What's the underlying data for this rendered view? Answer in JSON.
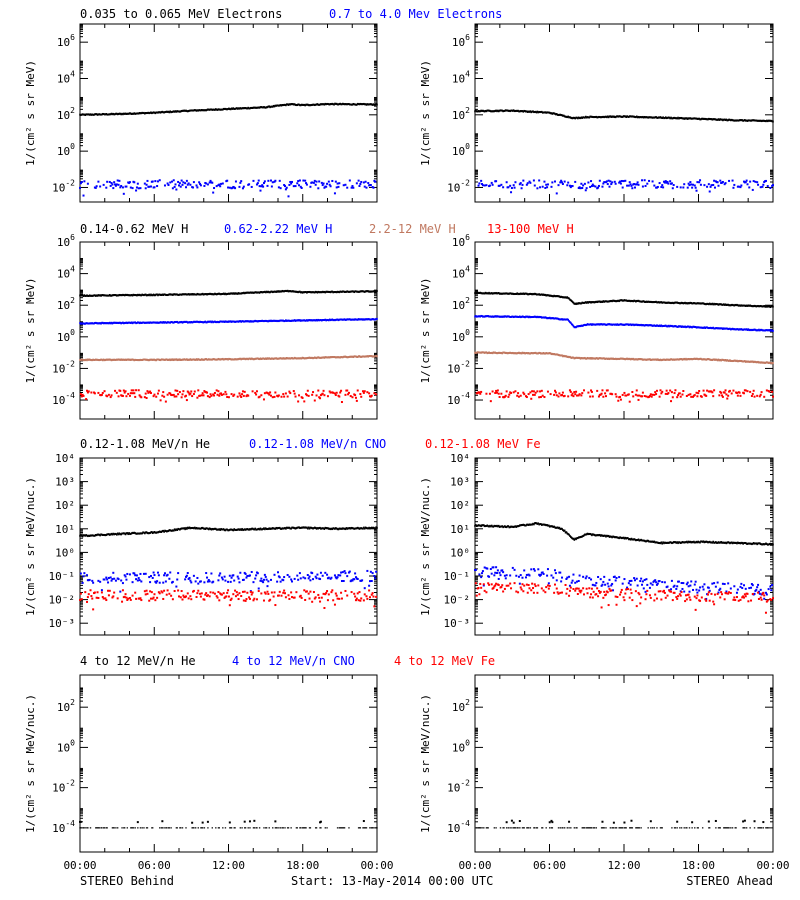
{
  "colors": {
    "black": "#000000",
    "blue": "#0000ff",
    "tan": "#c07860",
    "red": "#ff0000"
  },
  "chart_data": [
    {
      "type": "scatter",
      "row": 0,
      "col": 0,
      "yscale": "log",
      "ylabel": "1/(cm² s sr MeV)",
      "yticks": [
        {
          "exp": -2
        },
        {
          "exp": 0
        },
        {
          "exp": 2
        },
        {
          "exp": 4
        },
        {
          "exp": 6
        }
      ],
      "ylim": [
        -2.8,
        7.0
      ],
      "series": [
        {
          "name": "0.035 to 0.065 MeV Electrons",
          "color": "#000000",
          "pattern": "line",
          "x": [
            0,
            3,
            6,
            9,
            12,
            15,
            17,
            18,
            20,
            24
          ],
          "y": [
            100,
            110,
            130,
            170,
            210,
            260,
            380,
            340,
            390,
            370
          ]
        },
        {
          "name": "0.7 to 4.0 Mev Electrons",
          "color": "#0000ff",
          "pattern": "noisy",
          "x": [
            0,
            24
          ],
          "y": [
            0.015,
            0.015
          ]
        }
      ]
    },
    {
      "type": "scatter",
      "row": 0,
      "col": 1,
      "yscale": "log",
      "ylabel": "1/(cm² s sr MeV)",
      "yticks": [
        {
          "exp": -2
        },
        {
          "exp": 0
        },
        {
          "exp": 2
        },
        {
          "exp": 4
        },
        {
          "exp": 6
        }
      ],
      "ylim": [
        -2.8,
        7.0
      ],
      "series": [
        {
          "color": "#000000",
          "pattern": "line",
          "x": [
            0,
            3,
            6,
            8,
            9,
            12,
            15,
            18,
            21,
            24
          ],
          "y": [
            160,
            170,
            130,
            65,
            75,
            80,
            70,
            60,
            50,
            45
          ]
        },
        {
          "color": "#0000ff",
          "pattern": "noisy",
          "x": [
            0,
            24
          ],
          "y": [
            0.015,
            0.015
          ]
        }
      ]
    },
    {
      "type": "scatter",
      "row": 1,
      "col": 0,
      "yscale": "log",
      "ylabel": "1/(cm² s sr MeV)",
      "yticks": [
        {
          "exp": -4
        },
        {
          "exp": -2
        },
        {
          "exp": 0
        },
        {
          "exp": 2
        },
        {
          "exp": 4
        },
        {
          "exp": 6
        }
      ],
      "ylim": [
        -5.2,
        6.0
      ],
      "series": [
        {
          "name": "0.14-0.62 MeV H",
          "color": "#000000",
          "pattern": "line",
          "x": [
            0,
            6,
            12,
            17,
            18,
            21,
            24
          ],
          "y": [
            400,
            450,
            520,
            800,
            650,
            700,
            750
          ]
        },
        {
          "name": "0.62-2.22 MeV H",
          "color": "#0000ff",
          "pattern": "line",
          "x": [
            0,
            6,
            12,
            18,
            21,
            24
          ],
          "y": [
            7,
            8,
            9,
            11,
            12,
            13
          ]
        },
        {
          "name": "2.2-12 MeV H",
          "color": "#c07860",
          "pattern": "line",
          "x": [
            0,
            6,
            12,
            18,
            24
          ],
          "y": [
            0.035,
            0.035,
            0.038,
            0.045,
            0.06
          ]
        },
        {
          "name": "13-100 MeV H",
          "color": "#ff0000",
          "pattern": "noisy",
          "x": [
            0,
            24
          ],
          "y": [
            0.00025,
            0.00025
          ]
        }
      ]
    },
    {
      "type": "scatter",
      "row": 1,
      "col": 1,
      "yscale": "log",
      "ylabel": "1/(cm² s sr MeV)",
      "yticks": [
        {
          "exp": -4
        },
        {
          "exp": -2
        },
        {
          "exp": 0
        },
        {
          "exp": 2
        },
        {
          "exp": 4
        },
        {
          "exp": 6
        }
      ],
      "ylim": [
        -5.2,
        6.0
      ],
      "series": [
        {
          "color": "#000000",
          "pattern": "line",
          "x": [
            0,
            5,
            7.5,
            8,
            9,
            12,
            15,
            18,
            21,
            24
          ],
          "y": [
            600,
            500,
            300,
            120,
            150,
            200,
            150,
            130,
            100,
            80
          ]
        },
        {
          "color": "#0000ff",
          "pattern": "line",
          "x": [
            0,
            5,
            7.5,
            8,
            9,
            12,
            15,
            18,
            21,
            24
          ],
          "y": [
            20,
            18,
            12,
            4,
            6,
            6,
            5,
            4,
            3,
            2.5
          ]
        },
        {
          "color": "#c07860",
          "pattern": "line",
          "x": [
            0,
            6,
            8,
            12,
            15,
            18,
            21,
            24
          ],
          "y": [
            0.1,
            0.09,
            0.045,
            0.04,
            0.035,
            0.04,
            0.03,
            0.022
          ]
        },
        {
          "color": "#ff0000",
          "pattern": "noisy",
          "x": [
            0,
            24
          ],
          "y": [
            0.00025,
            0.00025
          ]
        }
      ]
    },
    {
      "type": "scatter",
      "row": 2,
      "col": 0,
      "yscale": "log",
      "ylabel": "1/(cm² s sr MeV/nuc.)",
      "yticks": [
        {
          "plain": "10⁻³"
        },
        {
          "plain": "10⁻²"
        },
        {
          "plain": "10⁻¹"
        },
        {
          "plain": "10⁰"
        },
        {
          "plain": "10¹"
        },
        {
          "plain": "10²"
        },
        {
          "plain": "10³"
        },
        {
          "plain": "10⁴"
        }
      ],
      "ylim": [
        -3.5,
        4.0
      ],
      "series": [
        {
          "name": "0.12-1.08 MeV/n He",
          "color": "#000000",
          "pattern": "line",
          "x": [
            0,
            3,
            6,
            9,
            12,
            15,
            18,
            21,
            24
          ],
          "y": [
            5,
            6,
            7,
            11,
            9,
            10,
            11,
            10,
            11
          ]
        },
        {
          "name": "0.12-1.08 MeV/n CNO",
          "color": "#0000ff",
          "pattern": "noisy",
          "x": [
            0,
            24
          ],
          "y": [
            0.08,
            0.1
          ]
        },
        {
          "name": "0.12-1.08 MeV Fe",
          "color": "#ff0000",
          "pattern": "noisy",
          "x": [
            0,
            24
          ],
          "y": [
            0.015,
            0.015
          ]
        }
      ]
    },
    {
      "type": "scatter",
      "row": 2,
      "col": 1,
      "yscale": "log",
      "ylabel": "1/(cm² s sr MeV/nuc.)",
      "yticks": [
        {
          "plain": "10⁻³"
        },
        {
          "plain": "10⁻²"
        },
        {
          "plain": "10⁻¹"
        },
        {
          "plain": "10⁰"
        },
        {
          "plain": "10¹"
        },
        {
          "plain": "10²"
        },
        {
          "plain": "10³"
        },
        {
          "plain": "10⁴"
        }
      ],
      "ylim": [
        -3.5,
        4.0
      ],
      "series": [
        {
          "color": "#000000",
          "pattern": "line",
          "x": [
            0,
            3,
            5,
            7,
            8,
            9,
            12,
            15,
            18,
            21,
            24
          ],
          "y": [
            14,
            12,
            17,
            10,
            3.5,
            6,
            4,
            2.5,
            2.8,
            2.5,
            2.2
          ]
        },
        {
          "color": "#0000ff",
          "pattern": "noisy",
          "x": [
            0,
            6,
            9,
            15,
            24
          ],
          "y": [
            0.15,
            0.12,
            0.07,
            0.04,
            0.025
          ]
        },
        {
          "color": "#ff0000",
          "pattern": "noisy",
          "x": [
            0,
            6,
            9,
            15,
            24
          ],
          "y": [
            0.04,
            0.03,
            0.02,
            0.015,
            0.012
          ]
        }
      ]
    },
    {
      "type": "scatter",
      "row": 3,
      "col": 0,
      "yscale": "log",
      "ylabel": "1/(cm² s sr MeV/nuc.)",
      "yticks": [
        {
          "exp": -4
        },
        {
          "exp": -2
        },
        {
          "exp": 0
        },
        {
          "exp": 2
        }
      ],
      "ylim": [
        -5.2,
        3.6
      ],
      "series": [
        {
          "name": "4 to 12 MeV/n He",
          "color": "#000000",
          "pattern": "sparse",
          "x": [
            0,
            24
          ],
          "y": [
            0.0001,
            0.0001
          ]
        },
        {
          "name": "4 to 12 MeV/n CNO",
          "color": "#0000ff",
          "pattern": "none",
          "x": [],
          "y": []
        },
        {
          "name": "4 to 12 MeV Fe",
          "color": "#ff0000",
          "pattern": "none",
          "x": [],
          "y": []
        }
      ]
    },
    {
      "type": "scatter",
      "row": 3,
      "col": 1,
      "yscale": "log",
      "ylabel": "1/(cm² s sr MeV/nuc.)",
      "yticks": [
        {
          "exp": -4
        },
        {
          "exp": -2
        },
        {
          "exp": 0
        },
        {
          "exp": 2
        }
      ],
      "ylim": [
        -5.2,
        3.6
      ],
      "series": [
        {
          "color": "#000000",
          "pattern": "sparse",
          "x": [
            0,
            24
          ],
          "y": [
            0.0001,
            0.0001
          ]
        }
      ]
    }
  ],
  "xaxis": {
    "ticks": [
      "00:00",
      "06:00",
      "12:00",
      "18:00",
      "00:00"
    ],
    "range_hours": [
      0,
      24
    ]
  },
  "footer": {
    "left": "STEREO Behind",
    "center": "Start: 13-May-2014 00:00 UTC",
    "right": "STEREO Ahead"
  }
}
